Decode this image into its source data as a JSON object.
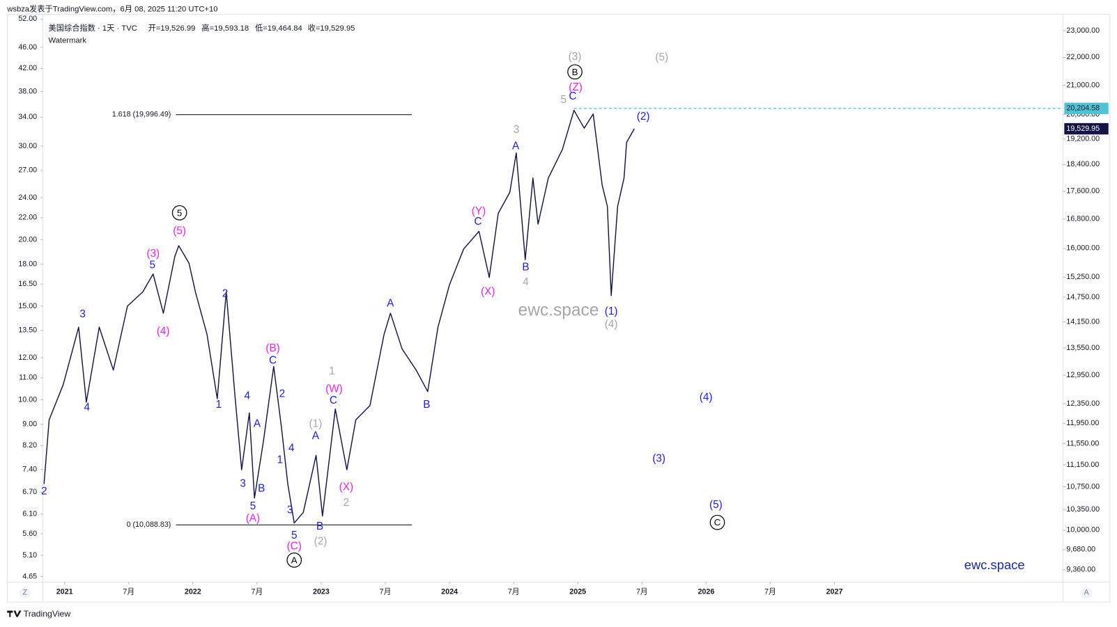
{
  "chart_data": {
    "type": "line",
    "credit": "wsbza发表于TradingView.com，6月 08, 2025 11:20 UTC+10",
    "title": "美国综合指数 · 1天 · TVC",
    "ohlc": [
      "开=19,526.99",
      "高=19,593.18",
      "低=19,464.84",
      "收=19,529.95"
    ],
    "watermark_label": "Watermark",
    "brand": "TradingView",
    "buttons": [
      "Z",
      "A"
    ],
    "color": "#131345",
    "log_scale": true,
    "x": [
      2020.84,
      2020.88,
      2020.99,
      2021.11,
      2021.17,
      2021.27,
      2021.38,
      2021.49,
      2021.61,
      2021.69,
      2021.77,
      2021.86,
      2021.89,
      2021.97,
      2022.02,
      2022.11,
      2022.19,
      2022.26,
      2022.33,
      2022.38,
      2022.44,
      2022.48,
      2022.55,
      2022.63,
      2022.69,
      2022.74,
      2022.79,
      2022.86,
      2022.96,
      2023.01,
      2023.11,
      2023.2,
      2023.27,
      2023.38,
      2023.49,
      2023.54,
      2023.63,
      2023.74,
      2023.83,
      2023.91,
      2024.0,
      2024.11,
      2024.23,
      2024.31,
      2024.38,
      2024.47,
      2024.52,
      2024.59,
      2024.65,
      2024.69,
      2024.77,
      2024.88,
      2024.97,
      2025.05,
      2025.12,
      2025.19,
      2025.23,
      2025.26,
      2025.31,
      2025.36,
      2025.38,
      2025.44
    ],
    "values": [
      10800,
      12020,
      12750,
      14030,
      12380,
      14030,
      13060,
      14530,
      14880,
      15330,
      14360,
      15790,
      16070,
      15610,
      14880,
      13860,
      12450,
      14880,
      12450,
      11060,
      12160,
      10550,
      11600,
      13140,
      11880,
      10800,
      10120,
      10300,
      11330,
      10240,
      12240,
      11060,
      12020,
      12310,
      13860,
      14360,
      13530,
      13060,
      12600,
      14030,
      15060,
      15980,
      16460,
      15240,
      16960,
      17570,
      18760,
      15700,
      17990,
      16660,
      17990,
      18870,
      20140,
      19550,
      20020,
      17780,
      17160,
      14790,
      17160,
      17990,
      19090,
      19530
    ],
    "xlim": [
      2020.83,
      2028.78
    ],
    "xticks": [
      2021,
      {
        "value": 2021.5,
        "label": "7月"
      },
      2022,
      {
        "value": 2022.5,
        "label": "7月"
      },
      2023,
      {
        "value": 2023.5,
        "label": "7月"
      },
      2024,
      {
        "value": 2024.5,
        "label": "7月"
      },
      2025,
      {
        "value": 2025.5,
        "label": "7月"
      },
      2026,
      {
        "value": 2026.5,
        "label": "7月"
      },
      2027
    ],
    "ylim": [
      9170,
      23640
    ],
    "yticks": [
      {
        "value": 23000,
        "label": "23,000.00"
      },
      {
        "value": 22000,
        "label": "22,000.00"
      },
      {
        "value": 21000,
        "label": "21,000.00"
      },
      {
        "value": 20000,
        "label": "20,000.00"
      },
      {
        "value": 19200,
        "label": "19,200.00"
      },
      {
        "value": 18400,
        "label": "18,400.00"
      },
      {
        "value": 17600,
        "label": "17,600.00"
      },
      {
        "value": 16800,
        "label": "16,800.00"
      },
      {
        "value": 16000,
        "label": "16,000.00"
      },
      {
        "value": 15250,
        "label": "15,250.00"
      },
      {
        "value": 14750,
        "label": "14,750.00"
      },
      {
        "value": 14150,
        "label": "14,150.00"
      },
      {
        "value": 13550,
        "label": "13,550.00"
      },
      {
        "value": 12950,
        "label": "12,950.00"
      },
      {
        "value": 12350,
        "label": "12,350.00"
      },
      {
        "value": 11950,
        "label": "11,950.00"
      },
      {
        "value": 11550,
        "label": "11,550.00"
      },
      {
        "value": 11150,
        "label": "11,150.00"
      },
      {
        "value": 10750,
        "label": "10,750.00"
      },
      {
        "value": 10350,
        "label": "10,350.00"
      },
      {
        "value": 10000,
        "label": "10,000.00"
      },
      {
        "value": 9680,
        "label": "9,680.00"
      },
      {
        "value": 9360,
        "label": "9,360.00"
      }
    ],
    "y2lim": [
      4.54,
      53.1
    ],
    "y2ticks": [
      {
        "value": 52,
        "label": "52.00"
      },
      {
        "value": 46,
        "label": "46.00"
      },
      {
        "value": 42,
        "label": "42.00"
      },
      {
        "value": 38,
        "label": "38.00"
      },
      {
        "value": 34,
        "label": "34.00"
      },
      {
        "value": 30,
        "label": "30.00"
      },
      {
        "value": 27,
        "label": "27.00"
      },
      {
        "value": 24,
        "label": "24.00"
      },
      {
        "value": 22,
        "label": "22.00"
      },
      {
        "value": 20,
        "label": "20.00"
      },
      {
        "value": 18,
        "label": "18.00"
      },
      {
        "value": 16.5,
        "label": "16.50"
      },
      {
        "value": 15,
        "label": "15.00"
      },
      {
        "value": 13.5,
        "label": "13.50"
      },
      {
        "value": 12,
        "label": "12.00"
      },
      {
        "value": 11,
        "label": "11.00"
      },
      {
        "value": 10,
        "label": "10.00"
      },
      {
        "value": 9,
        "label": "9.00"
      },
      {
        "value": 8.2,
        "label": "8.20"
      },
      {
        "value": 7.4,
        "label": "7.40"
      },
      {
        "value": 6.7,
        "label": "6.70"
      },
      {
        "value": 6.1,
        "label": "6.10"
      },
      {
        "value": 5.6,
        "label": "5.60"
      },
      {
        "value": 5.1,
        "label": "5.10"
      },
      {
        "value": 4.65,
        "label": "4.65"
      }
    ],
    "levels": [
      {
        "value": 19996.49,
        "label": "1.618 (19,996.49)",
        "color": "#000000"
      },
      {
        "value": 10088.83,
        "label": "0 (10,088.83)",
        "color": "#000000"
      }
    ],
    "high_line": {
      "value": 20204.58,
      "label": "20,204.58",
      "color": "#4fc3d6"
    },
    "last_price": {
      "value": 19529.95,
      "label": "19,529.95",
      "color": "#131345"
    },
    "annotations": [
      {
        "text": "2",
        "color": "#1c1cf0"
      },
      {
        "text": "3",
        "color": "#1c1cf0"
      },
      {
        "text": "4",
        "color": "#1c1cf0"
      },
      {
        "text": "(3)",
        "color": "#ee1fee"
      },
      {
        "text": "5",
        "color": "#1c1cf0"
      },
      {
        "text": "(4)",
        "color": "#ee1fee"
      },
      {
        "text": "(5)",
        "color": "#ee1fee"
      },
      {
        "text": "5",
        "color": "#000000",
        "circled": true
      },
      {
        "text": "2",
        "color": "#1c1cf0"
      },
      {
        "text": "1",
        "color": "#1c1cf0"
      },
      {
        "text": "(B)",
        "color": "#ee1fee"
      },
      {
        "text": "C",
        "color": "#1c1cf0"
      },
      {
        "text": "4",
        "color": "#1c1cf0"
      },
      {
        "text": "2",
        "color": "#1c1cf0"
      },
      {
        "text": "A",
        "color": "#1c1cf0"
      },
      {
        "text": "4",
        "color": "#1c1cf0"
      },
      {
        "text": "1",
        "color": "#1c1cf0"
      },
      {
        "text": "3",
        "color": "#1c1cf0"
      },
      {
        "text": "B",
        "color": "#1c1cf0"
      },
      {
        "text": "5",
        "color": "#1c1cf0"
      },
      {
        "text": "(A)",
        "color": "#ee1fee"
      },
      {
        "text": "3",
        "color": "#1c1cf0"
      },
      {
        "text": "5",
        "color": "#1c1cf0"
      },
      {
        "text": "(C)",
        "color": "#ee1fee"
      },
      {
        "text": "A",
        "color": "#000000",
        "circled": true
      },
      {
        "text": "B",
        "color": "#1c1cf0"
      },
      {
        "text": "(2)",
        "color": "#a6a6a6"
      },
      {
        "text": "(1)",
        "color": "#a6a6a6"
      },
      {
        "text": "A",
        "color": "#1c1cf0"
      },
      {
        "text": "1",
        "color": "#a6a6a6"
      },
      {
        "text": "(W)",
        "color": "#ee1fee"
      },
      {
        "text": "C",
        "color": "#1c1cf0"
      },
      {
        "text": "(X)",
        "color": "#ee1fee"
      },
      {
        "text": "2",
        "color": "#a6a6a6"
      },
      {
        "text": "A",
        "color": "#1c1cf0"
      },
      {
        "text": "B",
        "color": "#1c1cf0"
      },
      {
        "text": "(X)",
        "color": "#ee1fee"
      },
      {
        "text": "(Y)",
        "color": "#ee1fee"
      },
      {
        "text": "C",
        "color": "#1c1cf0"
      },
      {
        "text": "B",
        "color": "#1c1cf0"
      },
      {
        "text": "4",
        "color": "#a6a6a6"
      },
      {
        "text": "A",
        "color": "#1c1cf0"
      },
      {
        "text": "3",
        "color": "#a6a6a6"
      },
      {
        "text": "5",
        "color": "#a6a6a6"
      },
      {
        "text": "C",
        "color": "#1c1cf0"
      },
      {
        "text": "(Z)",
        "color": "#ee1fee"
      },
      {
        "text": "B",
        "color": "#000000",
        "circled": true
      },
      {
        "text": "(3)",
        "color": "#a6a6a6"
      },
      {
        "text": "(5)",
        "color": "#a6a6a6"
      },
      {
        "text": "(2)",
        "color": "#1c1cf0"
      },
      {
        "text": "(1)",
        "color": "#1c1cf0"
      },
      {
        "text": "(4)",
        "color": "#a6a6a6"
      },
      {
        "text": "(4)",
        "color": "#1c1cf0"
      },
      {
        "text": "(3)",
        "color": "#1c1cf0"
      },
      {
        "text": "(5)",
        "color": "#1c1cf0"
      },
      {
        "text": "C",
        "color": "#000000",
        "circled": true
      }
    ],
    "watermarks": [
      {
        "text": "ewc.space",
        "color": "#a6a6a6"
      },
      {
        "text": "ewc.space",
        "color": "#1a2a9e"
      }
    ]
  }
}
